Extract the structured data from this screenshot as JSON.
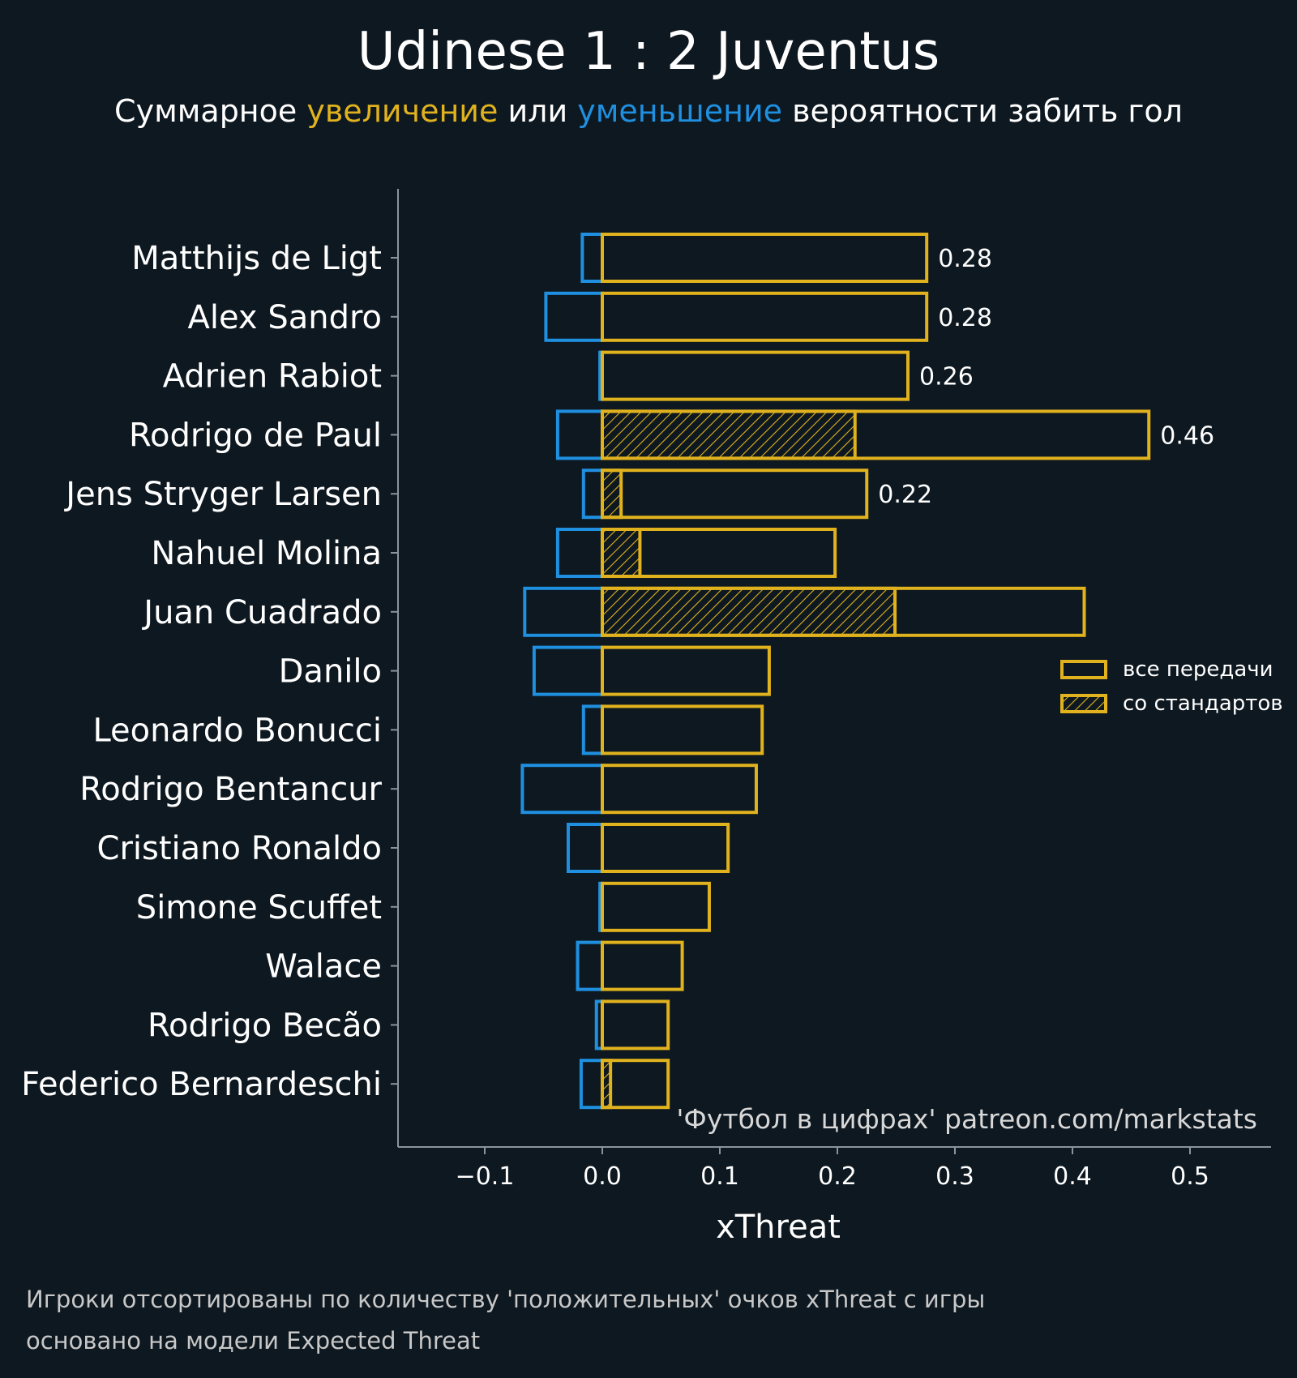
{
  "chart_data": {
    "type": "bar",
    "orientation": "horizontal",
    "title": "Udinese 1 : 2 Juventus",
    "subtitle_parts": [
      {
        "text": "Суммарное ",
        "color_key": "text"
      },
      {
        "text": "увеличение",
        "color_key": "positive"
      },
      {
        "text": " или ",
        "color_key": "text"
      },
      {
        "text": "уменьшение",
        "color_key": "negative"
      },
      {
        "text": " вероятности забить гол",
        "color_key": "text"
      }
    ],
    "xlabel": "xThreat",
    "xlim": [
      -0.175,
      0.57
    ],
    "xticks": [
      -0.1,
      0.0,
      0.1,
      0.2,
      0.3,
      0.4,
      0.5
    ],
    "xtick_labels": [
      "−0.1",
      "0.0",
      "0.1",
      "0.2",
      "0.3",
      "0.4",
      "0.5"
    ],
    "categories": [
      "Matthijs de Ligt",
      "Alex Sandro",
      "Adrien Rabiot",
      "Rodrigo de Paul",
      "Jens Stryger Larsen",
      "Nahuel Molina",
      "Juan Cuadrado",
      "Danilo",
      "Leonardo Bonucci",
      "Rodrigo Bentancur",
      "Cristiano Ronaldo",
      "Simone Scuffet",
      "Walace",
      "Rodrigo Becão",
      "Federico Bernardeschi"
    ],
    "series": [
      {
        "name": "все передачи",
        "key": "positive_all",
        "values": [
          0.276,
          0.276,
          0.26,
          0.465,
          0.225,
          0.198,
          0.41,
          0.142,
          0.136,
          0.131,
          0.107,
          0.091,
          0.068,
          0.056,
          0.056
        ]
      },
      {
        "name": "со стандартов",
        "key": "positive_set_pieces",
        "values": [
          0,
          0,
          0,
          0.215,
          0.016,
          0.032,
          0.249,
          0,
          0,
          0,
          0,
          0,
          0,
          0,
          0.007
        ]
      },
      {
        "name": "уменьшение",
        "key": "negative",
        "values": [
          -0.017,
          -0.048,
          -0.002,
          -0.038,
          -0.016,
          -0.038,
          -0.066,
          -0.058,
          -0.016,
          -0.068,
          -0.029,
          -0.002,
          -0.021,
          -0.005,
          -0.018
        ]
      }
    ],
    "value_labels": [
      "0.28",
      "0.28",
      "0.26",
      "0.46",
      "0.22",
      "",
      "",
      "",
      "",
      "",
      "",
      "",
      "",
      "",
      ""
    ],
    "legend": {
      "position": "right",
      "items": [
        {
          "label": "все передачи",
          "style": "outline"
        },
        {
          "label": "со стандартов",
          "style": "hatched"
        }
      ]
    },
    "watermark": "'Футбол в цифрах' patreon.com/markstats",
    "footnotes": [
      "Игроки отсортированы по количеству 'положительных' очков xThreat с игры",
      "основано на модели Expected Threat"
    ],
    "colors": {
      "background": "#0e1820",
      "positive": "#e0b21e",
      "negative": "#1f8fe0",
      "text": "#ffffff",
      "axis": "#8a949c",
      "muted": "#d8d8d8"
    }
  }
}
